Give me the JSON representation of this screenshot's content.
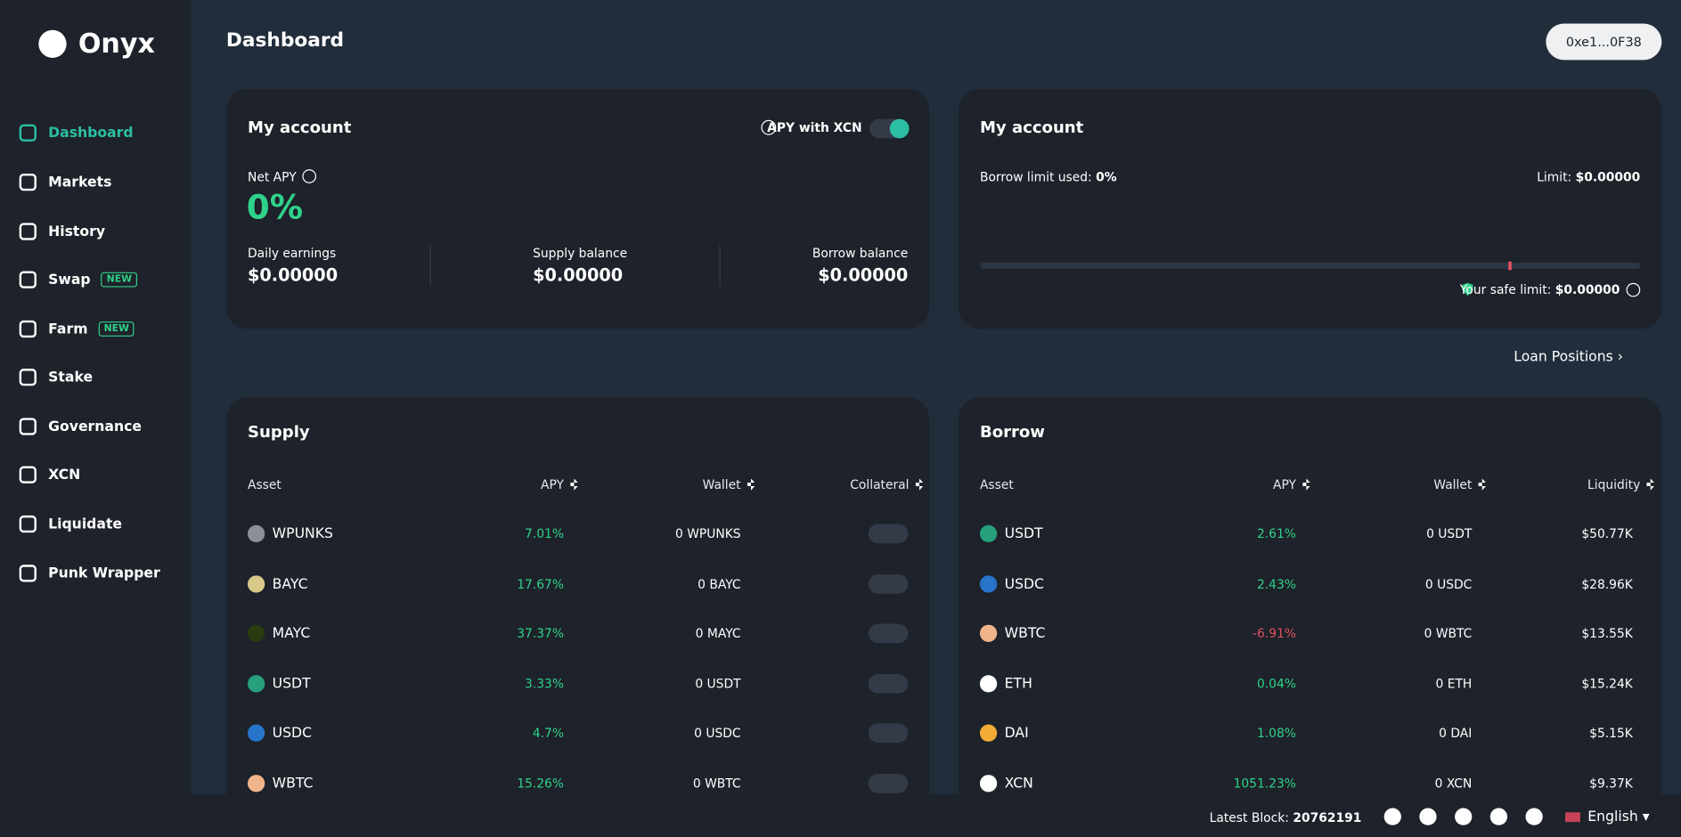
{
  "brand": "Onyx",
  "nav": [
    {
      "label": "Dashboard"
    },
    {
      "label": "Markets"
    },
    {
      "label": "History"
    },
    {
      "label": "Swap",
      "badge": "NEW"
    },
    {
      "label": "Farm",
      "badge": "NEW"
    },
    {
      "label": "Stake"
    },
    {
      "label": "Governance"
    },
    {
      "label": "XCN"
    },
    {
      "label": "Liquidate"
    },
    {
      "label": "Punk Wrapper"
    }
  ],
  "header": {
    "title": "Dashboard",
    "wallet": "0xe1...0F38"
  },
  "account": {
    "title": "My account",
    "toggle_label": "APY with XCN",
    "net_apy_label": "Net APY",
    "net_apy": "0%",
    "stats": [
      {
        "label": "Daily earnings",
        "value": "$0.00000"
      },
      {
        "label": "Supply balance",
        "value": "$0.00000"
      },
      {
        "label": "Borrow balance",
        "value": "$0.00000"
      }
    ]
  },
  "borrow_limit": {
    "title": "My account",
    "used_label": "Borrow limit used:",
    "used": "0%",
    "limit_label": "Limit:",
    "limit": "$0.00000",
    "safe_label": "Your safe limit:",
    "safe": "$0.00000"
  },
  "loan_positions": "Loan Positions",
  "supply": {
    "title": "Supply",
    "columns": [
      "Asset",
      "APY",
      "Wallet",
      "Collateral"
    ],
    "rows": [
      [
        "WPUNKS",
        "7.01%",
        "0 WPUNKS"
      ],
      [
        "BAYC",
        "17.67%",
        "0 BAYC"
      ],
      [
        "MAYC",
        "37.37%",
        "0 MAYC"
      ],
      [
        "USDT",
        "3.33%",
        "0 USDT"
      ],
      [
        "USDC",
        "4.7%",
        "0 USDC"
      ],
      [
        "WBTC",
        "15.26%",
        "0 WBTC"
      ]
    ]
  },
  "borrow": {
    "title": "Borrow",
    "columns": [
      "Asset",
      "APY",
      "Wallet",
      "Liquidity"
    ],
    "rows": [
      [
        "USDT",
        "2.61%",
        "0 USDT",
        "$50.77K"
      ],
      [
        "USDC",
        "2.43%",
        "0 USDC",
        "$28.96K"
      ],
      [
        "WBTC",
        "-6.91%",
        "0 WBTC",
        "$13.55K"
      ],
      [
        "ETH",
        "0.04%",
        "0 ETH",
        "$15.24K"
      ],
      [
        "DAI",
        "1.08%",
        "0 DAI",
        "$5.15K"
      ],
      [
        "XCN",
        "1051.23%",
        "0 XCN",
        "$9.37K"
      ]
    ]
  },
  "footer": {
    "latest_block_label": "Latest Block:",
    "latest_block": 20762191,
    "language": "English"
  }
}
